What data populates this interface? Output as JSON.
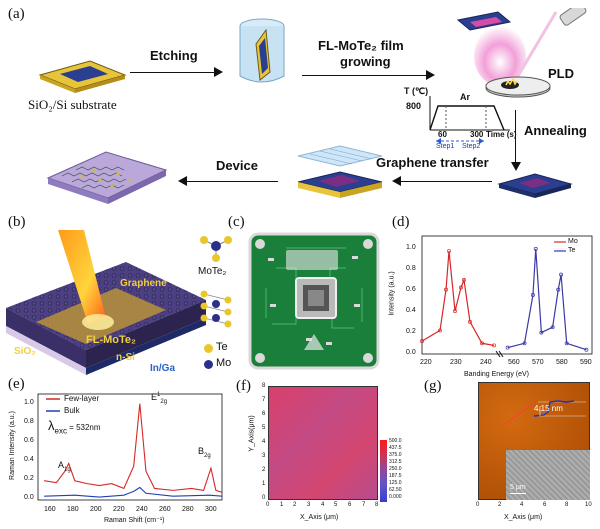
{
  "panels": {
    "a": "(a)",
    "b": "(b)",
    "c": "(c)",
    "d": "(d)",
    "e": "(e)",
    "f": "(f)",
    "g": "(g)"
  },
  "process": {
    "substrate": "SiO₂/Si substrate",
    "etching": "Etching",
    "film_line1": "FL-MoTe₂ film",
    "film_line2": "growing",
    "pld": "PLD",
    "annealing": "Annealing",
    "graphene_transfer": "Graphene transfer",
    "device": "Device"
  },
  "anneal_profile": {
    "ylabel": "T (℃)",
    "gas": "Ar",
    "y_tick": "800",
    "x_ticks": [
      "60",
      "300"
    ],
    "xlabel": "Time (s)",
    "step1": "Step1",
    "step2": "Step2"
  },
  "device_schematic": {
    "graphene": "Graphene",
    "film": "FL-MoTe₂",
    "sio2": "SiO₂",
    "nsi": "n-Si",
    "contact": "In/Ga",
    "molecule": "MoTe₂",
    "legend_te": "Te",
    "legend_mo": "Mo"
  },
  "xps": {
    "ylabel": "Intensity (a.u.)",
    "xlabel": "Banding Energy (eV)",
    "legend": [
      "Mo",
      "Te"
    ],
    "yticks": [
      "0.0",
      "0.2",
      "0.4",
      "0.6",
      "0.8",
      "1.0"
    ],
    "xticks": [
      "220",
      "230",
      "240",
      "560",
      "570",
      "580",
      "590"
    ]
  },
  "raman": {
    "ylabel": "Raman Intensity (a.u.)",
    "xlabel": "Raman Shift (cm⁻¹)",
    "legend": [
      "Few-layer",
      "Bulk"
    ],
    "excitation": "λ",
    "excitation_sub": "exc",
    "excitation_value": " = 532nm",
    "peak_a1g": "A",
    "peak_a1g_sub": "1g",
    "peak_e": "E",
    "peak_e_sup": "1",
    "peak_e_sub": "2g",
    "peak_b": "B",
    "peak_b_sub": "2g",
    "yticks": [
      "0.0",
      "0.2",
      "0.4",
      "0.6",
      "0.8",
      "1.0"
    ],
    "xticks": [
      "160",
      "180",
      "200",
      "220",
      "240",
      "260",
      "280",
      "300"
    ]
  },
  "map": {
    "ylabel": "Y_Axis(μm)",
    "xlabel": "X_Axis (μm)",
    "xticks": [
      "0",
      "1",
      "2",
      "3",
      "4",
      "5",
      "6",
      "7",
      "8"
    ],
    "yticks": [
      "0",
      "1",
      "2",
      "3",
      "4",
      "5",
      "6",
      "7",
      "8"
    ],
    "colorbar": [
      "500.0",
      "437.5",
      "375.0",
      "312.5",
      "250.0",
      "187.5",
      "125.0",
      "62.50",
      "0.000"
    ]
  },
  "afm": {
    "thickness": "4.15 nm",
    "scale": "5 μm",
    "xlabel": "X_Axis (μm)",
    "xticks": [
      "0",
      "2",
      "4",
      "6",
      "8",
      "10"
    ]
  },
  "chart_data": [
    {
      "type": "line",
      "title": "",
      "xlabel": "Banding Energy (eV)",
      "ylabel": "Intensity (a.u.)",
      "ylim": [
        0,
        1.1
      ],
      "series": [
        {
          "name": "Mo",
          "x": [
            220,
            226,
            228,
            229,
            231,
            233,
            234,
            236,
            240,
            244
          ],
          "y": [
            0.12,
            0.22,
            0.6,
            0.96,
            0.4,
            0.62,
            0.69,
            0.3,
            0.1,
            0.08
          ]
        },
        {
          "name": "Te",
          "x": [
            562,
            568,
            571,
            572,
            574,
            578,
            580,
            581,
            583,
            590
          ],
          "y": [
            0.06,
            0.1,
            0.55,
            0.98,
            0.2,
            0.25,
            0.6,
            0.74,
            0.1,
            0.04
          ]
        }
      ]
    },
    {
      "type": "line",
      "title": "",
      "xlabel": "Raman Shift (cm⁻¹)",
      "ylabel": "Raman Intensity (a.u.)",
      "xlim": [
        150,
        300
      ],
      "ylim": [
        0,
        1.1
      ],
      "series": [
        {
          "name": "Few-layer",
          "x": [
            155,
            165,
            172,
            175,
            180,
            190,
            200,
            210,
            220,
            228,
            233,
            238,
            245,
            260,
            275,
            285,
            291,
            295,
            300
          ],
          "y": [
            0.2,
            0.18,
            0.3,
            0.38,
            0.2,
            0.17,
            0.15,
            0.17,
            0.12,
            0.35,
            1.0,
            0.3,
            0.12,
            0.1,
            0.12,
            0.1,
            0.33,
            0.1,
            0.08
          ]
        },
        {
          "name": "Bulk",
          "x": [
            155,
            180,
            200,
            220,
            228,
            233,
            238,
            260,
            290,
            300
          ],
          "y": [
            0.04,
            0.05,
            0.03,
            0.05,
            0.09,
            0.13,
            0.07,
            0.04,
            0.05,
            0.04
          ]
        }
      ]
    }
  ]
}
